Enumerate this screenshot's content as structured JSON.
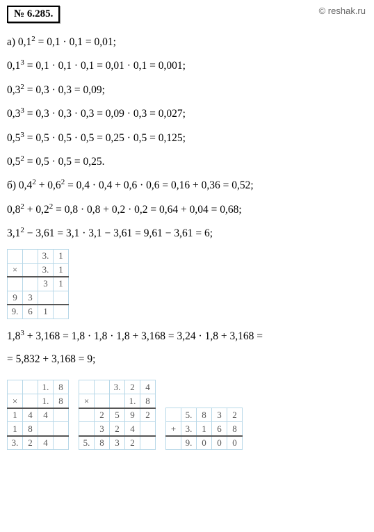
{
  "header": {
    "problem_number": "№ 6.285.",
    "copyright": "© reshak.ru"
  },
  "lines": {
    "a1": "а) 0,1² = 0,1 · 0,1 = 0,01;",
    "a2": "0,1³ = 0,1 · 0,1 · 0,1 = 0,01 · 0,1 = 0,001;",
    "a3": "0,3² = 0,3 · 0,3 = 0,09;",
    "a4": "0,3³ = 0,3 · 0,3 · 0,3 = 0,09 · 0,3 = 0,027;",
    "a5": "0,5³ = 0,5 · 0,5 · 0,5 = 0,25 · 0,5 = 0,125;",
    "a6": "0,5² = 0,5 · 0,5 = 0,25.",
    "b1": "б) 0,4² + 0,6² = 0,4 · 0,4 + 0,6 · 0,6 = 0,16 + 0,36 = 0,52;",
    "b2": "0,8² + 0,2² = 0,8 · 0,8 + 0,2 · 0,2 = 0,64 + 0,04 = 0,68;",
    "b3": "3,1² − 3,61 = 3,1 · 3,1 − 3,61 = 9,61 − 3,61 = 6;",
    "b4": "1,8³ + 3,168 = 1,8 · 1,8 · 1,8 + 3,168 = 3,24 · 1,8 + 3,168 =",
    "b5": "= 5,832 + 3,168 = 9;"
  },
  "table1": {
    "rows": [
      [
        "",
        "",
        "3.",
        "1"
      ],
      [
        "×",
        "",
        "3.",
        "1"
      ],
      [
        "",
        "",
        "3",
        "1"
      ],
      [
        "9",
        "3",
        "",
        ""
      ],
      [
        "9.",
        "6",
        "1",
        ""
      ]
    ]
  },
  "table2": {
    "rows": [
      [
        "",
        "",
        "1.",
        "8"
      ],
      [
        "×",
        "",
        "1.",
        "8"
      ],
      [
        "1",
        "4",
        "4",
        ""
      ],
      [
        "1",
        "8",
        "",
        ""
      ],
      [
        "3.",
        "2",
        "4",
        ""
      ]
    ]
  },
  "table3": {
    "rows": [
      [
        "",
        "",
        "3.",
        "2",
        "4"
      ],
      [
        "×",
        "",
        "",
        "1.",
        "8"
      ],
      [
        "",
        "2",
        "5",
        "9",
        "2"
      ],
      [
        "",
        "3",
        "2",
        "4",
        ""
      ],
      [
        "5.",
        "8",
        "3",
        "2",
        ""
      ]
    ]
  },
  "table4": {
    "rows": [
      [
        "",
        "5.",
        "8",
        "3",
        "2"
      ],
      [
        "+",
        "3.",
        "1",
        "6",
        "8"
      ],
      [
        "",
        "9.",
        "0",
        "0",
        "0"
      ]
    ]
  }
}
